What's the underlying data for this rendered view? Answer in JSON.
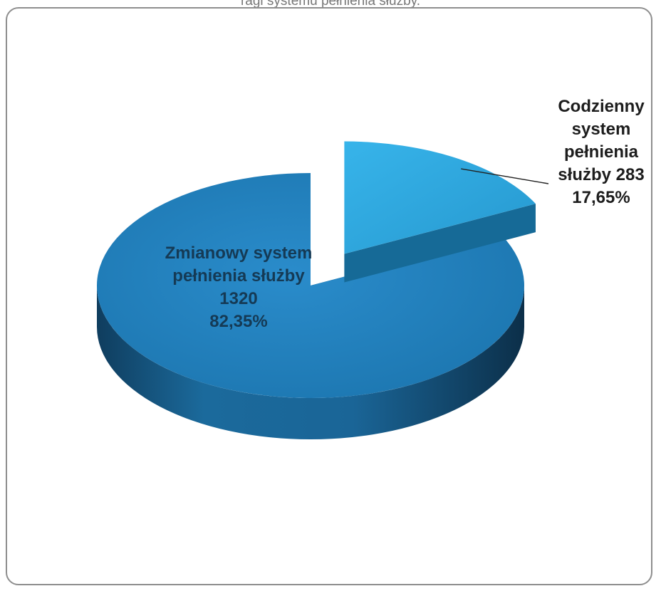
{
  "header": {
    "caption": "ragi systemu pełnienia służby."
  },
  "colors": {
    "slice_main": "#1f7bb4",
    "slice_main_dark": "#134f76",
    "slice_small": "#2ea6dd",
    "slice_small_dark": "#1a6f99",
    "frame": "#8e8e8e"
  },
  "chart_data": {
    "type": "pie",
    "title": "",
    "style": "3d-exploded",
    "slices": [
      {
        "label_lines": [
          "Zmianowy  system",
          "pełnienia służby",
          "1320",
          "82,35%"
        ],
        "value": 1320,
        "percent": 82.35,
        "color": "#1f7bb4"
      },
      {
        "label_lines": [
          "Codzienny",
          "system",
          "pełnienia",
          "służby 283",
          "17,65%"
        ],
        "value": 283,
        "percent": 17.65,
        "color": "#2ea6dd",
        "exploded": true
      }
    ]
  }
}
